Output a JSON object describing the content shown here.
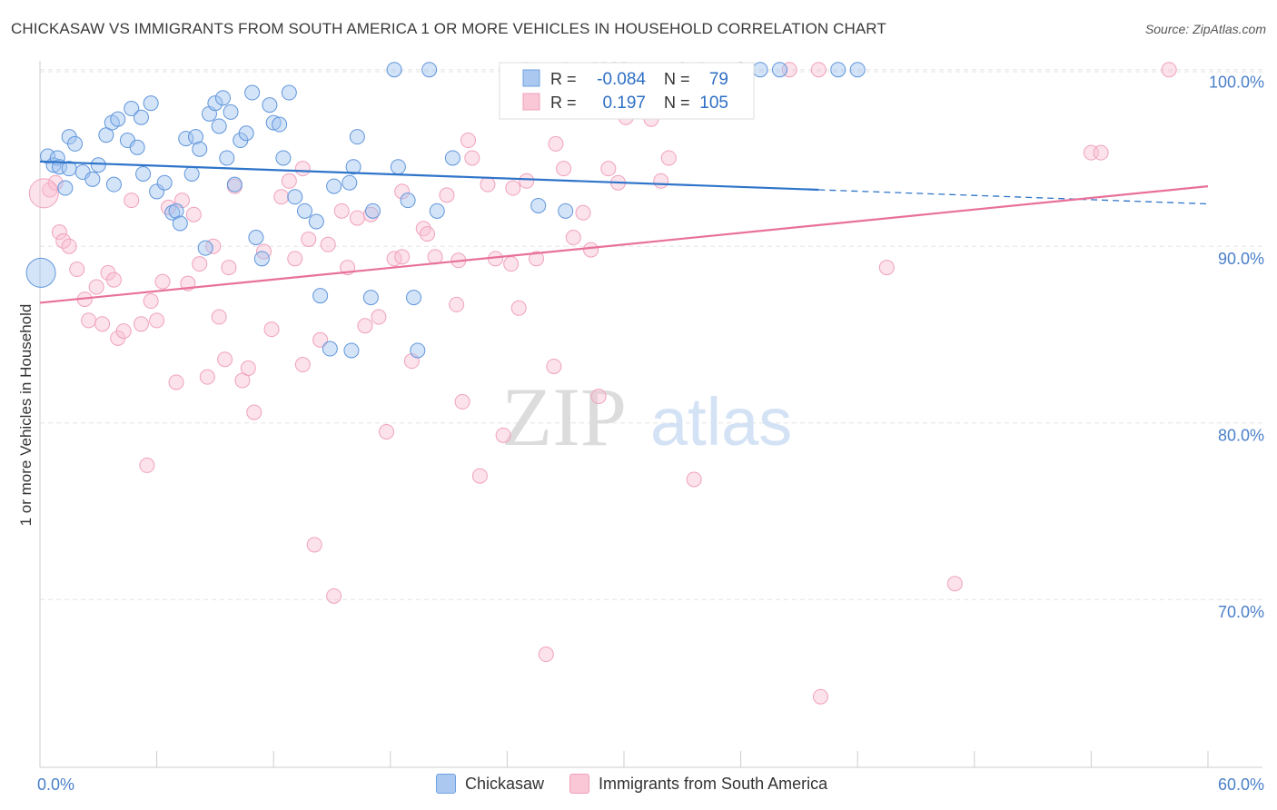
{
  "title": "CHICKASAW VS IMMIGRANTS FROM SOUTH AMERICA 1 OR MORE VEHICLES IN HOUSEHOLD CORRELATION CHART",
  "source": "Source: ZipAtlas.com",
  "watermark": {
    "zip": "ZIP",
    "atlas": "atlas"
  },
  "stats": {
    "r_label": "R =",
    "n_label": "N =",
    "rows": [
      {
        "r": "-0.084",
        "n": "79",
        "color": "#6ea1e0"
      },
      {
        "r": "0.197",
        "n": "105",
        "color": "#f3a7bd"
      }
    ]
  },
  "legend": [
    {
      "label": "Chickasaw",
      "color": "#aac8f0",
      "border": "#6ea1e0"
    },
    {
      "label": "Immigrants from South America",
      "color": "#f9c7d6",
      "border": "#f0a0b8"
    }
  ],
  "colors": {
    "blue_line": "#2e74c9",
    "pink_line": "#e8709a",
    "tick_label": "#4a7fc9",
    "grid": "#e3e3e3"
  },
  "chart_data": {
    "type": "scatter",
    "xlabel": "",
    "ylabel": "1 or more Vehicles in Household",
    "xlim": [
      0,
      60
    ],
    "ylim": [
      60.5,
      100.5
    ],
    "x_tick_labels": [
      {
        "value": 0,
        "label": "0.0%"
      },
      {
        "value": 60,
        "label": "60.0%"
      }
    ],
    "y_tick_labels": [
      {
        "value": 70,
        "label": "70.0%"
      },
      {
        "value": 80,
        "label": "80.0%"
      },
      {
        "value": 90,
        "label": "90.0%"
      },
      {
        "value": 100,
        "label": "100.0%"
      }
    ],
    "grid": true,
    "series": [
      {
        "name": "Chickasaw",
        "trend": {
          "x0": 0,
          "y0": 94.8,
          "x1": 40.0,
          "y1": 93.2,
          "dash_to_x": 60,
          "dash_to_y": 92.4
        },
        "points": [
          [
            0.4,
            95.1
          ],
          [
            0.7,
            94.6
          ],
          [
            0.9,
            95.0
          ],
          [
            1.0,
            94.5
          ],
          [
            1.3,
            93.3
          ],
          [
            1.5,
            94.4
          ],
          [
            1.5,
            96.2
          ],
          [
            1.8,
            95.8
          ],
          [
            2.2,
            94.2
          ],
          [
            2.7,
            93.8
          ],
          [
            3.0,
            94.6
          ],
          [
            3.4,
            96.3
          ],
          [
            3.7,
            97.0
          ],
          [
            3.8,
            93.5
          ],
          [
            4.0,
            97.2
          ],
          [
            4.5,
            96.0
          ],
          [
            4.7,
            97.8
          ],
          [
            5.0,
            95.6
          ],
          [
            5.2,
            97.3
          ],
          [
            5.3,
            94.1
          ],
          [
            5.7,
            98.1
          ],
          [
            6.0,
            93.1
          ],
          [
            6.4,
            93.6
          ],
          [
            6.8,
            91.9
          ],
          [
            7.0,
            92.0
          ],
          [
            7.2,
            91.3
          ],
          [
            7.5,
            96.1
          ],
          [
            7.8,
            94.1
          ],
          [
            8.0,
            96.2
          ],
          [
            8.2,
            95.5
          ],
          [
            8.5,
            89.9
          ],
          [
            8.7,
            97.5
          ],
          [
            9.0,
            98.1
          ],
          [
            9.2,
            96.8
          ],
          [
            9.4,
            98.4
          ],
          [
            9.6,
            95.0
          ],
          [
            9.8,
            97.6
          ],
          [
            10.0,
            93.5
          ],
          [
            10.3,
            96.0
          ],
          [
            10.6,
            96.4
          ],
          [
            10.9,
            98.7
          ],
          [
            11.1,
            90.5
          ],
          [
            11.4,
            89.3
          ],
          [
            11.8,
            98.0
          ],
          [
            12.0,
            97.0
          ],
          [
            12.3,
            96.9
          ],
          [
            12.5,
            95.0
          ],
          [
            12.8,
            98.7
          ],
          [
            13.1,
            92.8
          ],
          [
            13.6,
            92.0
          ],
          [
            14.2,
            91.4
          ],
          [
            14.4,
            87.2
          ],
          [
            14.9,
            84.2
          ],
          [
            15.1,
            93.4
          ],
          [
            15.9,
            93.6
          ],
          [
            16.0,
            84.1
          ],
          [
            16.1,
            94.5
          ],
          [
            16.3,
            96.2
          ],
          [
            17.0,
            87.1
          ],
          [
            17.1,
            92.0
          ],
          [
            18.2,
            100.0
          ],
          [
            18.4,
            94.5
          ],
          [
            18.9,
            92.6
          ],
          [
            19.2,
            87.1
          ],
          [
            19.4,
            84.1
          ],
          [
            20.0,
            100.0
          ],
          [
            20.4,
            92.0
          ],
          [
            21.2,
            95.0
          ],
          [
            25.6,
            92.3
          ],
          [
            27.0,
            92.0
          ],
          [
            29.0,
            100.0
          ],
          [
            29.5,
            100.0
          ],
          [
            30.0,
            100.0
          ],
          [
            33.0,
            100.0
          ],
          [
            36.0,
            100.0
          ],
          [
            37.0,
            100.0
          ],
          [
            38.0,
            100.0
          ],
          [
            41.0,
            100.0
          ],
          [
            42.0,
            100.0
          ],
          [
            0.05,
            88.5
          ]
        ],
        "sizes_note": "one large point at left edge"
      },
      {
        "name": "Immigrants from South America",
        "trend": {
          "x0": 0,
          "y0": 86.8,
          "x1": 60,
          "y1": 93.4
        },
        "points": [
          [
            0.5,
            93.2
          ],
          [
            0.8,
            93.6
          ],
          [
            1.0,
            90.8
          ],
          [
            1.2,
            90.3
          ],
          [
            1.5,
            90.0
          ],
          [
            1.9,
            88.7
          ],
          [
            2.3,
            87.0
          ],
          [
            2.5,
            85.8
          ],
          [
            2.9,
            87.7
          ],
          [
            3.2,
            85.6
          ],
          [
            3.5,
            88.5
          ],
          [
            3.8,
            88.1
          ],
          [
            4.0,
            84.8
          ],
          [
            4.3,
            85.2
          ],
          [
            4.7,
            92.6
          ],
          [
            5.2,
            85.6
          ],
          [
            5.5,
            77.6
          ],
          [
            5.7,
            86.9
          ],
          [
            6.0,
            85.8
          ],
          [
            6.3,
            88.0
          ],
          [
            6.6,
            92.2
          ],
          [
            7.0,
            82.3
          ],
          [
            7.3,
            92.6
          ],
          [
            7.6,
            87.9
          ],
          [
            7.9,
            91.8
          ],
          [
            8.2,
            89.0
          ],
          [
            8.6,
            82.6
          ],
          [
            8.9,
            90.0
          ],
          [
            9.2,
            86.0
          ],
          [
            9.5,
            83.6
          ],
          [
            9.7,
            88.8
          ],
          [
            10.0,
            93.4
          ],
          [
            10.4,
            82.4
          ],
          [
            10.7,
            83.1
          ],
          [
            11.0,
            80.6
          ],
          [
            11.5,
            89.7
          ],
          [
            11.9,
            85.3
          ],
          [
            12.4,
            92.8
          ],
          [
            12.8,
            93.7
          ],
          [
            13.1,
            89.3
          ],
          [
            13.5,
            83.3
          ],
          [
            13.8,
            90.4
          ],
          [
            14.1,
            73.1
          ],
          [
            14.4,
            84.7
          ],
          [
            14.8,
            90.1
          ],
          [
            15.1,
            70.2
          ],
          [
            15.5,
            92.0
          ],
          [
            15.8,
            88.8
          ],
          [
            16.3,
            91.6
          ],
          [
            16.7,
            85.5
          ],
          [
            17.0,
            91.8
          ],
          [
            17.4,
            86.0
          ],
          [
            17.8,
            79.5
          ],
          [
            18.2,
            89.3
          ],
          [
            18.6,
            89.4
          ],
          [
            19.1,
            83.5
          ],
          [
            19.7,
            91.0
          ],
          [
            20.3,
            89.4
          ],
          [
            20.9,
            92.9
          ],
          [
            21.4,
            86.7
          ],
          [
            21.7,
            81.2
          ],
          [
            22.2,
            95.0
          ],
          [
            22.6,
            77.0
          ],
          [
            23.0,
            93.5
          ],
          [
            23.4,
            89.3
          ],
          [
            23.8,
            79.3
          ],
          [
            24.2,
            89.0
          ],
          [
            24.6,
            86.5
          ],
          [
            25.0,
            93.7
          ],
          [
            25.5,
            89.3
          ],
          [
            26.0,
            66.9
          ],
          [
            26.4,
            83.2
          ],
          [
            26.9,
            94.4
          ],
          [
            27.4,
            90.5
          ],
          [
            27.9,
            91.9
          ],
          [
            28.3,
            89.8
          ],
          [
            28.7,
            81.5
          ],
          [
            29.2,
            94.4
          ],
          [
            29.7,
            93.6
          ],
          [
            30.1,
            97.3
          ],
          [
            31.4,
            97.2
          ],
          [
            31.9,
            93.7
          ],
          [
            32.3,
            95.0
          ],
          [
            33.6,
            76.8
          ],
          [
            40.1,
            64.5
          ],
          [
            43.5,
            88.8
          ],
          [
            47.0,
            70.9
          ],
          [
            54.0,
            95.3
          ],
          [
            54.5,
            95.3
          ],
          [
            58.0,
            100.0
          ],
          [
            25.0,
            100.0
          ],
          [
            27.0,
            100.0
          ],
          [
            28.5,
            100.0
          ],
          [
            30.5,
            99.2
          ],
          [
            34.0,
            100.0
          ],
          [
            36.0,
            100.0
          ],
          [
            38.5,
            100.0
          ],
          [
            40.0,
            100.0
          ],
          [
            26.5,
            95.8
          ],
          [
            22.0,
            96.0
          ],
          [
            18.6,
            93.1
          ],
          [
            19.9,
            90.7
          ],
          [
            13.5,
            94.4
          ],
          [
            21.5,
            89.2
          ],
          [
            24.3,
            93.3
          ],
          [
            0.2,
            93.0
          ]
        ]
      }
    ]
  }
}
